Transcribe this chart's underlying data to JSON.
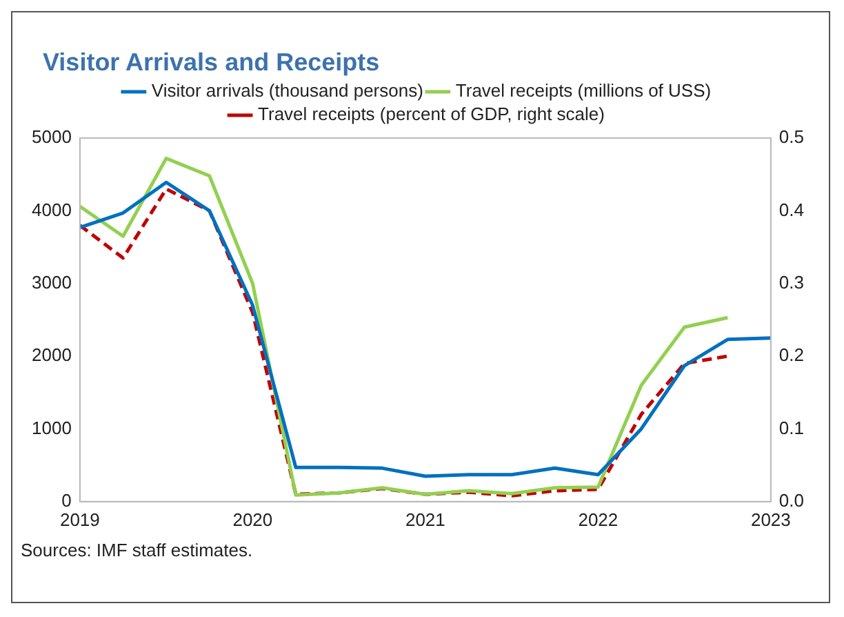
{
  "chart_data": {
    "type": "line",
    "title": "Visitor Arrivals and Receipts",
    "annotations": [
      "Sources: IMF staff estimates."
    ],
    "xlim": [
      2019,
      2023
    ],
    "xticks": [
      2019,
      2020,
      2021,
      2022,
      2023
    ],
    "ylim": [
      0,
      5000
    ],
    "yticks": [
      0,
      1000,
      2000,
      3000,
      4000,
      5000
    ],
    "y2lim": [
      0,
      0.5
    ],
    "y2ticks": [
      {
        "value": 0,
        "label": "0.0"
      },
      0.1,
      0.2,
      0.3,
      0.4,
      0.5
    ],
    "grid": false,
    "legend": "top",
    "marker": "none",
    "series": [
      {
        "name": "Visitor arrivals (thousand persons)",
        "color": "#0070c0",
        "line_style": "solid",
        "x": [
          2019,
          2019.25,
          2019.5,
          2019.75,
          2020,
          2020.25,
          2020.5,
          2020.75,
          2021,
          2021.25,
          2021.5,
          2021.75,
          2022,
          2022.25,
          2022.5,
          2022.75,
          2023
        ],
        "values": [
          3770,
          3970,
          4390,
          4000,
          2700,
          470,
          470,
          460,
          350,
          370,
          370,
          460,
          370,
          1000,
          1870,
          2230,
          2250
        ]
      },
      {
        "name": "Travel receipts (millions of USS)",
        "color": "#92d050",
        "line_style": "solid",
        "x": [
          2019,
          2019.25,
          2019.5,
          2019.75,
          2020,
          2020.25,
          2020.5,
          2020.75,
          2021,
          2021.25,
          2021.5,
          2021.75,
          2022,
          2022.25,
          2022.5,
          2022.75
        ],
        "values": [
          4060,
          3650,
          4720,
          4480,
          3000,
          90,
          120,
          190,
          100,
          150,
          110,
          190,
          200,
          1600,
          2400,
          2530
        ]
      },
      {
        "name": "Travel receipts (percent of GDP, right scale)",
        "color": "#c00000",
        "line_style": "dashed",
        "axis": "y2",
        "x": [
          2019,
          2019.25,
          2019.5,
          2019.75,
          2020,
          2020.25,
          2020.5,
          2020.75,
          2021,
          2021.25,
          2021.5,
          2021.75,
          2022,
          2022.25,
          2022.5,
          2022.75
        ],
        "values": [
          0.38,
          0.335,
          0.43,
          0.4,
          0.26,
          0.01,
          0.012,
          0.018,
          0.01,
          0.013,
          0.008,
          0.015,
          0.017,
          0.12,
          0.19,
          0.2
        ]
      }
    ]
  }
}
